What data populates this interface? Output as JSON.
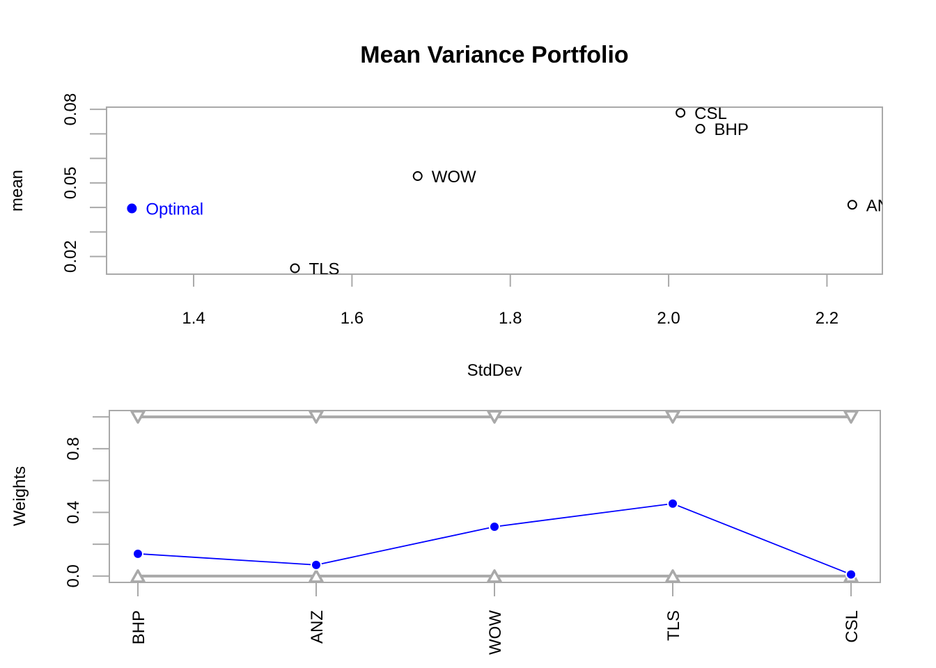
{
  "chart_data": [
    {
      "type": "scatter",
      "title": "Mean Variance Portfolio",
      "xlabel": "StdDev",
      "ylabel": "mean",
      "xlim": [
        1.29,
        2.27
      ],
      "ylim": [
        0.0128,
        0.0809
      ],
      "xticks": [
        1.4,
        1.6,
        1.8,
        2.0,
        2.2
      ],
      "xtick_labels": [
        "1.4",
        "1.6",
        "1.8",
        "2.0",
        "2.2"
      ],
      "yticks": [
        0.02,
        0.03,
        0.04,
        0.05,
        0.06,
        0.07,
        0.08
      ],
      "ytick_labels": [
        "0.02",
        "",
        "",
        "0.05",
        "",
        "",
        "0.08"
      ],
      "grid": false,
      "points": [
        {
          "label": "CSL",
          "x": 2.015,
          "y": 0.0786,
          "style": "open",
          "color": "#000000"
        },
        {
          "label": "BHP",
          "x": 2.04,
          "y": 0.0721,
          "style": "open",
          "color": "#000000"
        },
        {
          "label": "WOW",
          "x": 1.683,
          "y": 0.0528,
          "style": "open",
          "color": "#000000"
        },
        {
          "label": "ANZ",
          "x": 2.232,
          "y": 0.0411,
          "style": "open",
          "color": "#000000"
        },
        {
          "label": "Optimal",
          "x": 1.322,
          "y": 0.0396,
          "style": "filled",
          "color": "#0000FF"
        },
        {
          "label": "TLS",
          "x": 1.528,
          "y": 0.0152,
          "style": "open",
          "color": "#000000"
        }
      ]
    },
    {
      "type": "line",
      "xlabel": "",
      "ylabel": "Weights",
      "categories": [
        "BHP",
        "ANZ",
        "WOW",
        "TLS",
        "CSL"
      ],
      "ylim": [
        -0.04,
        1.04
      ],
      "yticks": [
        0.0,
        0.2,
        0.4,
        0.6,
        0.8,
        1.0
      ],
      "ytick_labels": [
        "0.0",
        "",
        "0.4",
        "",
        "0.8",
        ""
      ],
      "grid": false,
      "series": [
        {
          "name": "",
          "values": [
            0.14,
            0.07,
            0.31,
            0.455,
            0.01
          ],
          "color": "#0000FF",
          "marker": "filled-circle"
        },
        {
          "name": "",
          "values": [
            1,
            1,
            1,
            1,
            1
          ],
          "color": "#A9A9A9",
          "marker": "triangle-down"
        },
        {
          "name": "",
          "values": [
            0,
            0,
            0,
            0,
            0
          ],
          "color": "#A9A9A9",
          "marker": "triangle-up"
        }
      ]
    }
  ]
}
